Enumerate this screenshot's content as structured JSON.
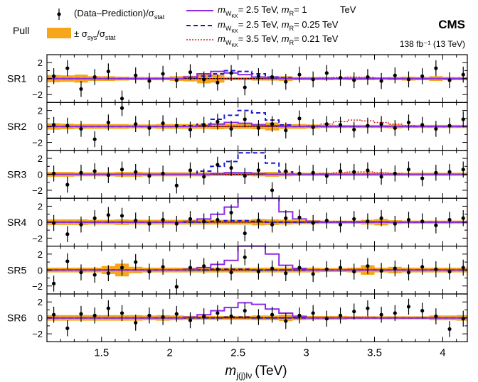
{
  "header": {
    "pull_label": "Pull",
    "experiment": "CMS",
    "lumi": "138 fb⁻¹ (13 TeV)"
  },
  "legend": {
    "data_label_a": "(Data–Prediction)/σ",
    "data_label_sub": "stat",
    "band_label_a": "± σ",
    "band_label_sub1": "sys",
    "band_label_mid": "/σ",
    "band_label_sub2": "stat",
    "sig1": [
      "= 2.5 TeV, ",
      "= 1",
      "TeV"
    ],
    "sig2": [
      "= 2.5 TeV, ",
      "= 0.25 TeV"
    ],
    "sig3": [
      "= 3.5 TeV, ",
      "= 0.21 TeV"
    ],
    "m_symbol": "m",
    "wkk_sub": "W",
    "kk_sub": "KK",
    "r_sub": "R"
  },
  "colors": {
    "band": "#f7a51b",
    "data": "#000000",
    "sig1": "#8a2be2",
    "sig2": "#1a1acc",
    "sig3": "#d62020"
  },
  "chart_data": {
    "type": "line",
    "xlabel": "m",
    "xlabel_sub": "j(j)lν",
    "xlabel_unit": "(TeV)",
    "xlim": [
      1.1,
      4.18
    ],
    "ylim": [
      -3,
      3
    ],
    "x_ticks": [
      "1.5",
      "2",
      "2.5",
      "3",
      "3.5",
      "4"
    ],
    "y_ticks": [
      "2",
      "0",
      "−2"
    ],
    "bin_edges": [
      1.1,
      1.2,
      1.3,
      1.4,
      1.5,
      1.6,
      1.7,
      1.8,
      1.9,
      2.0,
      2.1,
      2.2,
      2.3,
      2.4,
      2.5,
      2.6,
      2.7,
      2.8,
      2.9,
      3.0,
      3.1,
      3.2,
      3.3,
      3.4,
      3.5,
      3.6,
      3.7,
      3.8,
      3.9,
      4.0,
      4.1,
      4.18
    ],
    "series_info": [
      {
        "name": "(Data–Prediction)/σstat",
        "style": "points"
      },
      {
        "name": "± σsys/σstat",
        "style": "band"
      },
      {
        "name": "mWKK = 2.5 TeV, mR = 1 TeV",
        "style": "solid"
      },
      {
        "name": "mWKK = 2.5 TeV, mR = 0.25 TeV",
        "style": "dashed"
      },
      {
        "name": "mWKK = 3.5 TeV, mR = 0.21 TeV",
        "style": "dotted"
      }
    ],
    "panels": [
      {
        "label": "SR1",
        "data_x": [
          1.15,
          1.25,
          1.35,
          1.45,
          1.55,
          1.65,
          1.75,
          1.85,
          1.95,
          2.05,
          2.15,
          2.25,
          2.35,
          2.45,
          2.55,
          2.65,
          2.75,
          2.85,
          2.95,
          3.05,
          3.15,
          3.25,
          3.35,
          3.45,
          3.55,
          3.65,
          3.75,
          3.85,
          3.95,
          4.05,
          4.15
        ],
        "data_y": [
          0.3,
          1.3,
          -1.3,
          0.2,
          0.9,
          -2.5,
          0.4,
          -0.3,
          0.6,
          -0.2,
          0.8,
          -0.1,
          -0.5,
          0.7,
          -1.1,
          0.3,
          0.2,
          -0.4,
          0.5,
          -0.1,
          0.7,
          0.1,
          -0.2,
          0.2,
          -0.3,
          0.4,
          -0.1,
          0.3,
          1.3,
          -0.2,
          0.5
        ],
        "band": [
          0.45,
          0.4,
          0.5,
          0.3,
          0.3,
          0.25,
          0.2,
          0.2,
          0.2,
          0.3,
          0.35,
          0.6,
          0.5,
          0.2,
          0.2,
          0.25,
          0.25,
          0.3,
          0.2,
          0.2,
          0.2,
          0.15,
          0.2,
          0.2,
          0.15,
          0.2,
          0.25,
          0.2,
          0.3,
          0.2,
          0.2
        ],
        "sig1": [
          0,
          0,
          0,
          0,
          0,
          0,
          0,
          0,
          0,
          0,
          0.2,
          0.6,
          0.9,
          0.7,
          0.5,
          0.2,
          0.1,
          0,
          0,
          0,
          0,
          0,
          0,
          0,
          0,
          0,
          0,
          0,
          0,
          0,
          0
        ],
        "sig2": [
          0,
          0,
          0,
          0,
          0,
          0,
          0,
          0,
          0,
          0,
          0.1,
          0.3,
          0.6,
          1.0,
          0.9,
          0.6,
          0.2,
          0.1,
          0,
          0,
          0,
          0,
          0,
          0,
          0,
          0,
          0,
          0,
          0,
          0,
          0
        ],
        "sig3": [
          0,
          0,
          0,
          0,
          0,
          0,
          0,
          0,
          0,
          0,
          0,
          0,
          0,
          0,
          0,
          0,
          0,
          0,
          0,
          0.05,
          0.1,
          0.15,
          0.2,
          0.15,
          0.1,
          0.05,
          0,
          0,
          0,
          0,
          0
        ]
      },
      {
        "label": "SR2",
        "data_x": [
          1.15,
          1.25,
          1.35,
          1.45,
          1.55,
          1.65,
          1.75,
          1.85,
          1.95,
          2.05,
          2.15,
          2.25,
          2.35,
          2.45,
          2.55,
          2.65,
          2.75,
          2.85,
          2.95,
          3.05,
          3.15,
          3.25,
          3.35,
          3.45,
          3.55,
          3.65,
          3.75,
          3.85,
          3.95,
          4.05,
          4.15
        ],
        "data_y": [
          0.2,
          0.1,
          -0.3,
          -1.6,
          0.5,
          2.3,
          0.3,
          -0.2,
          0.4,
          0.1,
          -0.4,
          0.2,
          0.6,
          -0.3,
          0.9,
          -0.2,
          0.3,
          -0.5,
          1.0,
          -0.1,
          0.3,
          0.2,
          -0.4,
          0.1,
          0.3,
          -0.2,
          0.5,
          0.2,
          -0.3,
          0.1,
          0.9
        ],
        "band": [
          0.4,
          0.35,
          0.3,
          0.3,
          0.3,
          0.3,
          0.25,
          0.25,
          0.3,
          0.3,
          0.3,
          0.3,
          0.35,
          0.3,
          0.3,
          0.35,
          0.5,
          0.3,
          0.3,
          0.25,
          0.2,
          0.2,
          0.2,
          0.2,
          0.2,
          0.25,
          0.2,
          0.2,
          0.2,
          0.2,
          0.2
        ],
        "sig1": [
          0,
          0,
          0,
          0,
          0,
          0,
          0,
          0,
          0,
          0,
          0,
          0.1,
          0.3,
          0.5,
          0.4,
          0.2,
          0.1,
          0,
          0,
          0,
          0,
          0,
          0,
          0,
          0,
          0,
          0,
          0,
          0,
          0,
          0
        ],
        "sig2": [
          0,
          0,
          0,
          0,
          0,
          0,
          0,
          0,
          0,
          0,
          0.1,
          0.3,
          0.9,
          1.4,
          2.0,
          1.7,
          0.8,
          0.2,
          0,
          0,
          0,
          0,
          0,
          0,
          0,
          0,
          0,
          0,
          0,
          0,
          0
        ],
        "sig3": [
          0,
          0,
          0,
          0,
          0,
          0,
          0,
          0,
          0,
          0,
          0,
          0,
          0,
          0,
          0,
          0,
          0,
          0,
          0,
          0.1,
          0.3,
          0.6,
          0.8,
          0.7,
          0.5,
          0.3,
          0.1,
          0,
          0,
          0,
          0
        ]
      },
      {
        "label": "SR3",
        "data_x": [
          1.15,
          1.25,
          1.35,
          1.45,
          1.55,
          1.65,
          1.75,
          1.85,
          1.95,
          2.05,
          2.15,
          2.25,
          2.35,
          2.45,
          2.55,
          2.65,
          2.75,
          2.85,
          2.95,
          3.05,
          3.15,
          3.25,
          3.35,
          3.45,
          3.55,
          3.65,
          3.75,
          3.85,
          3.95,
          4.05,
          4.15
        ],
        "data_y": [
          0.1,
          -1.3,
          0.2,
          0.4,
          -0.1,
          0.6,
          0.3,
          -0.2,
          0.1,
          -1.4,
          0.5,
          -0.3,
          1.2,
          0.8,
          -0.2,
          0.5,
          -2.0,
          0.4,
          0.1,
          0.2,
          -0.2,
          0.4,
          0.3,
          0.5,
          -0.3,
          0.1,
          0.6,
          -0.5,
          0.2,
          0.3,
          0.6
        ],
        "band": [
          0.3,
          0.3,
          0.25,
          0.25,
          0.25,
          0.3,
          0.3,
          0.25,
          0.25,
          0.25,
          0.25,
          0.25,
          0.2,
          0.2,
          0.2,
          0.25,
          0.3,
          0.25,
          0.2,
          0.2,
          0.2,
          0.2,
          0.2,
          0.2,
          0.2,
          0.2,
          0.2,
          0.2,
          0.2,
          0.2,
          0.2
        ],
        "sig1": [
          0,
          0,
          0,
          0,
          0,
          0,
          0,
          0,
          0,
          0,
          0,
          0,
          0.1,
          0.2,
          0.2,
          0.1,
          0,
          0,
          0,
          0,
          0,
          0,
          0,
          0,
          0,
          0,
          0,
          0,
          0,
          0,
          0
        ],
        "sig2": [
          0,
          0,
          0,
          0,
          0,
          0,
          0,
          0,
          0,
          0,
          0,
          0.4,
          1.0,
          1.6,
          2.7,
          2.7,
          1.4,
          0.3,
          0,
          0,
          0,
          0,
          0,
          0,
          0,
          0,
          0,
          0,
          0,
          0,
          0
        ],
        "sig3": [
          0,
          0,
          0,
          0,
          0,
          0,
          0,
          0,
          0,
          0,
          0,
          0,
          0,
          0,
          0,
          0,
          0,
          0,
          0,
          0,
          0.1,
          0.2,
          0.3,
          0.3,
          0.2,
          0.1,
          0,
          0,
          0,
          0,
          0
        ]
      },
      {
        "label": "SR4",
        "data_x": [
          1.15,
          1.25,
          1.35,
          1.45,
          1.55,
          1.65,
          1.75,
          1.85,
          1.95,
          2.05,
          2.15,
          2.25,
          2.35,
          2.45,
          2.55,
          2.65,
          2.75,
          2.85,
          2.95,
          3.05,
          3.15,
          3.25,
          3.35,
          3.45,
          3.55,
          3.65,
          3.75,
          3.85,
          3.95,
          4.05,
          4.15
        ],
        "data_y": [
          -0.1,
          -1.5,
          -0.3,
          0.5,
          0.9,
          0.8,
          0.2,
          -0.2,
          0.3,
          -0.2,
          0.4,
          0.1,
          0.3,
          1.2,
          -1.4,
          0.2,
          -0.3,
          0.5,
          0.6,
          -0.1,
          0.2,
          -0.3,
          0.4,
          0.1,
          0.5,
          -0.2,
          0.3,
          0.1,
          -0.4,
          0.3,
          0.5
        ],
        "band": [
          0.35,
          0.35,
          0.35,
          0.3,
          0.3,
          0.35,
          0.3,
          0.3,
          0.3,
          0.3,
          0.3,
          0.3,
          0.3,
          0.3,
          0.3,
          0.4,
          0.35,
          0.3,
          0.25,
          0.25,
          0.2,
          0.2,
          0.2,
          0.3,
          0.4,
          0.25,
          0.2,
          0.2,
          0.2,
          0.2,
          0.2
        ],
        "sig1": [
          0,
          0,
          0,
          0,
          0,
          0,
          0,
          0,
          0,
          0,
          0.1,
          0.4,
          1.0,
          1.9,
          4.0,
          4.0,
          3.5,
          1.3,
          0.4,
          0.1,
          0,
          0,
          0,
          0,
          0,
          0,
          0,
          0,
          0,
          0,
          0
        ],
        "sig2": [
          0,
          0,
          0,
          0,
          0,
          0,
          0,
          0,
          0,
          0,
          0,
          0,
          0.1,
          0.2,
          0.2,
          0.1,
          0,
          0,
          0,
          0,
          0,
          0,
          0,
          0,
          0,
          0,
          0,
          0,
          0,
          0,
          0
        ],
        "sig3": [
          0,
          0,
          0,
          0,
          0,
          0,
          0,
          0,
          0,
          0,
          0,
          0,
          0,
          0,
          0,
          0,
          0,
          0,
          0,
          0,
          0,
          0.1,
          0.1,
          0.1,
          0.1,
          0,
          0,
          0,
          0,
          0,
          0
        ]
      },
      {
        "label": "SR5",
        "data_x": [
          1.15,
          1.25,
          1.35,
          1.45,
          1.55,
          1.65,
          1.75,
          1.85,
          1.95,
          2.05,
          2.15,
          2.25,
          2.35,
          2.45,
          2.55,
          2.65,
          2.75,
          2.85,
          2.95,
          3.05,
          3.15,
          3.25,
          3.35,
          3.45,
          3.55,
          3.65,
          3.75,
          3.85,
          3.95,
          4.05,
          4.15
        ],
        "data_y": [
          -1.7,
          1.1,
          -0.3,
          -0.6,
          -0.4,
          0.3,
          1.0,
          -0.2,
          0.4,
          -2.1,
          0.3,
          0.5,
          0.1,
          -0.3,
          1.6,
          -0.2,
          0.2,
          -0.4,
          0.3,
          -0.5,
          0.1,
          0.3,
          -0.2,
          0.5,
          -0.1,
          0.2,
          -0.3,
          0.4,
          0.1,
          -0.2,
          0.3
        ],
        "band": [
          0.3,
          0.3,
          0.3,
          0.3,
          0.5,
          0.8,
          0.4,
          0.3,
          0.3,
          0.3,
          0.3,
          0.3,
          0.3,
          0.3,
          0.3,
          0.3,
          0.3,
          0.3,
          0.3,
          0.3,
          0.25,
          0.25,
          0.3,
          0.6,
          0.3,
          0.4,
          0.3,
          0.3,
          0.3,
          0.3,
          0.3
        ],
        "sig1": [
          0,
          0,
          0,
          0,
          0,
          0,
          0,
          0,
          0,
          0,
          0.1,
          0.3,
          0.7,
          1.2,
          3.5,
          4.0,
          2.0,
          0.6,
          0.2,
          0,
          0,
          0,
          0,
          0,
          0,
          0,
          0,
          0,
          0,
          0,
          0
        ],
        "sig2": [
          0,
          0,
          0,
          0,
          0,
          0,
          0,
          0,
          0,
          0,
          0,
          0,
          0.1,
          0.1,
          0.1,
          0,
          0,
          0,
          0,
          0,
          0,
          0,
          0,
          0,
          0,
          0,
          0,
          0,
          0,
          0,
          0
        ],
        "sig3": [
          0,
          0,
          0,
          0,
          0,
          0,
          0,
          0,
          0,
          0,
          0,
          0,
          0,
          0,
          0,
          0,
          0,
          0,
          0,
          0,
          0,
          0,
          0.1,
          0.1,
          0,
          0,
          0,
          0,
          0,
          0,
          0
        ]
      },
      {
        "label": "SR6",
        "data_x": [
          1.15,
          1.25,
          1.35,
          1.45,
          1.55,
          1.65,
          1.75,
          1.85,
          1.95,
          2.05,
          2.15,
          2.25,
          2.35,
          2.45,
          2.55,
          2.65,
          2.75,
          2.85,
          2.95,
          3.05,
          3.15,
          3.25,
          3.35,
          3.45,
          3.55,
          3.65,
          3.75,
          3.85,
          3.95,
          4.05,
          4.15
        ],
        "data_y": [
          0.4,
          -1.3,
          0.5,
          0.3,
          1.2,
          0.6,
          -0.6,
          0.3,
          0.1,
          0.5,
          -0.3,
          0.2,
          0.6,
          0.2,
          0.9,
          0.1,
          0.4,
          -0.4,
          0.3,
          0.6,
          -0.1,
          0.3,
          0.8,
          1.2,
          0.4,
          0.6,
          1.4,
          0.9,
          0.2,
          -1.4,
          -0.1
        ],
        "band": [
          0.35,
          0.35,
          0.35,
          0.35,
          0.35,
          0.35,
          0.35,
          0.3,
          0.35,
          0.3,
          0.25,
          0.25,
          0.25,
          0.25,
          0.25,
          0.3,
          0.3,
          0.4,
          0.3,
          0.25,
          0.25,
          0.25,
          0.2,
          0.2,
          0.2,
          0.2,
          0.2,
          0.2,
          0.3,
          0.3,
          0.35
        ],
        "sig1": [
          0,
          0,
          0,
          0,
          0,
          0,
          0,
          0,
          0,
          0,
          0.1,
          0.4,
          0.9,
          1.3,
          1.9,
          1.7,
          1.1,
          0.6,
          0.2,
          0,
          0,
          0,
          0,
          0,
          0,
          0,
          0,
          0,
          0,
          0,
          0
        ],
        "sig2": [
          0,
          0,
          0,
          0,
          0,
          0,
          0,
          0,
          0,
          0,
          0,
          0,
          0,
          0.1,
          0.1,
          0,
          0,
          0,
          0,
          0,
          0,
          0,
          0,
          0,
          0,
          0,
          0,
          0,
          0,
          0,
          0
        ],
        "sig3": [
          0,
          0,
          0,
          0,
          0,
          0,
          0,
          0,
          0,
          0,
          0,
          0,
          0,
          0,
          0,
          0,
          0,
          0,
          0,
          0,
          0,
          0,
          0.1,
          0.1,
          0,
          0,
          0,
          0,
          0,
          0,
          0
        ]
      }
    ]
  }
}
